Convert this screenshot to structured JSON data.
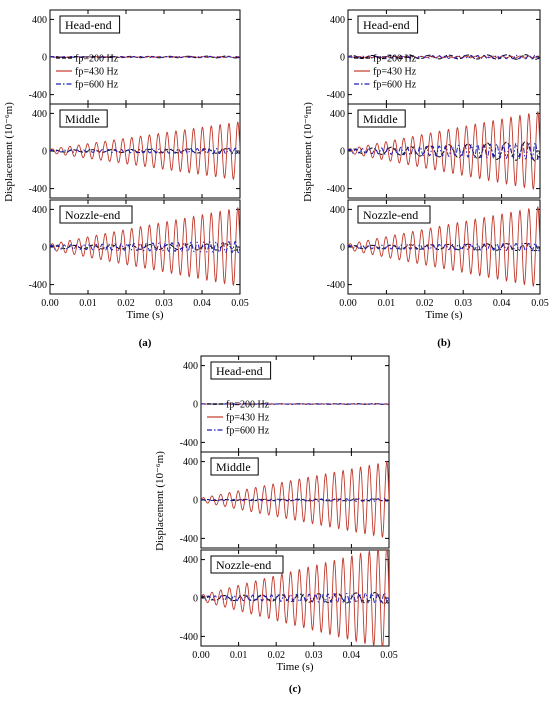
{
  "figure": {
    "panels": [
      {
        "label": "(a)",
        "label_letter": "a"
      },
      {
        "label": "(b)",
        "label_letter": "b"
      },
      {
        "label": "(c)",
        "label_letter": "c"
      }
    ]
  },
  "chart_data": [
    {
      "type": "line",
      "panel": "a",
      "xlabel": "Time (s)",
      "ylabel": "Displacement (10⁻⁶m)",
      "xlim": [
        0,
        0.05
      ],
      "xticks": [
        "0.00",
        "0.01",
        "0.02",
        "0.03",
        "0.04",
        "0.05"
      ],
      "ylim": [
        -500,
        500
      ],
      "yticks": [
        "400",
        "0",
        "-400"
      ],
      "legend": [
        "fp=200 Hz",
        "fp=430 Hz",
        "fp=600 Hz"
      ],
      "legend_location": "lower-left of top subplot",
      "subplots": [
        {
          "name": "Head-end",
          "series": [
            {
              "name": "fp=200 Hz",
              "color": "#000000",
              "style": "dash",
              "frequency_hz": 200,
              "amplitude_start": 5,
              "amplitude_end": 10
            },
            {
              "name": "fp=430 Hz",
              "color": "#c0392b",
              "style": "solid",
              "frequency_hz": 430,
              "amplitude_start": 2,
              "amplitude_end": 5
            },
            {
              "name": "fp=600 Hz",
              "color": "#1f1fb4",
              "style": "dashdot",
              "frequency_hz": 600,
              "amplitude_start": 4,
              "amplitude_end": 8
            }
          ]
        },
        {
          "name": "Middle",
          "series": [
            {
              "name": "fp=200 Hz",
              "color": "#000000",
              "style": "dash",
              "frequency_hz": 200,
              "amplitude_start": 10,
              "amplitude_end": 25
            },
            {
              "name": "fp=430 Hz",
              "color": "#c0392b",
              "style": "solid",
              "frequency_hz": 430,
              "amplitude_start": 20,
              "amplitude_end": 310
            },
            {
              "name": "fp=600 Hz",
              "color": "#1f1fb4",
              "style": "dashdot",
              "frequency_hz": 600,
              "amplitude_start": 10,
              "amplitude_end": 30
            }
          ]
        },
        {
          "name": "Nozzle-end",
          "series": [
            {
              "name": "fp=200 Hz",
              "color": "#000000",
              "style": "dash",
              "frequency_hz": 200,
              "amplitude_start": 15,
              "amplitude_end": 35
            },
            {
              "name": "fp=430 Hz",
              "color": "#c0392b",
              "style": "solid",
              "frequency_hz": 430,
              "amplitude_start": 30,
              "amplitude_end": 420
            },
            {
              "name": "fp=600 Hz",
              "color": "#1f1fb4",
              "style": "dashdot",
              "frequency_hz": 600,
              "amplitude_start": 20,
              "amplitude_end": 60
            }
          ]
        }
      ]
    },
    {
      "type": "line",
      "panel": "b",
      "xlabel": "Time (s)",
      "ylabel": "Displacement (10⁻⁶m)",
      "xlim": [
        0,
        0.05
      ],
      "xticks": [
        "0.00",
        "0.01",
        "0.02",
        "0.03",
        "0.04",
        "0.05"
      ],
      "ylim": [
        -500,
        500
      ],
      "yticks": [
        "400",
        "0",
        "-400"
      ],
      "legend": [
        "fp=200 Hz",
        "fp=430 Hz",
        "fp=600 Hz"
      ],
      "legend_location": "lower-left of top subplot",
      "subplots": [
        {
          "name": "Head-end",
          "series": [
            {
              "name": "fp=200 Hz",
              "color": "#000000",
              "style": "dash",
              "frequency_hz": 200,
              "amplitude_start": 15,
              "amplitude_end": 25
            },
            {
              "name": "fp=430 Hz",
              "color": "#c0392b",
              "style": "solid",
              "frequency_hz": 430,
              "amplitude_start": 5,
              "amplitude_end": 10
            },
            {
              "name": "fp=600 Hz",
              "color": "#1f1fb4",
              "style": "dashdot",
              "frequency_hz": 600,
              "amplitude_start": 10,
              "amplitude_end": 20
            }
          ]
        },
        {
          "name": "Middle",
          "series": [
            {
              "name": "fp=200 Hz",
              "color": "#000000",
              "style": "dash",
              "frequency_hz": 200,
              "amplitude_start": 20,
              "amplitude_end": 110
            },
            {
              "name": "fp=430 Hz",
              "color": "#c0392b",
              "style": "solid",
              "frequency_hz": 430,
              "amplitude_start": 20,
              "amplitude_end": 420
            },
            {
              "name": "fp=600 Hz",
              "color": "#1f1fb4",
              "style": "dashdot",
              "frequency_hz": 600,
              "amplitude_start": 20,
              "amplitude_end": 90
            }
          ]
        },
        {
          "name": "Nozzle-end",
          "series": [
            {
              "name": "fp=200 Hz",
              "color": "#000000",
              "style": "dash",
              "frequency_hz": 200,
              "amplitude_start": 15,
              "amplitude_end": 40
            },
            {
              "name": "fp=430 Hz",
              "color": "#c0392b",
              "style": "solid",
              "frequency_hz": 430,
              "amplitude_start": 30,
              "amplitude_end": 430
            },
            {
              "name": "fp=600 Hz",
              "color": "#1f1fb4",
              "style": "dashdot",
              "frequency_hz": 600,
              "amplitude_start": 15,
              "amplitude_end": 40
            }
          ]
        }
      ]
    },
    {
      "type": "line",
      "panel": "c",
      "xlabel": "Time (s)",
      "ylabel": "Displacement (10⁻⁶m)",
      "xlim": [
        0,
        0.05
      ],
      "xticks": [
        "0.00",
        "0.01",
        "0.02",
        "0.03",
        "0.04",
        "0.05"
      ],
      "ylim": [
        -500,
        500
      ],
      "yticks": [
        "400",
        "0",
        "-400"
      ],
      "legend": [
        "fp=200 Hz",
        "fp=430 Hz",
        "fp=600 Hz"
      ],
      "legend_location": "lower-left of top subplot",
      "subplots": [
        {
          "name": "Head-end",
          "series": [
            {
              "name": "fp=200 Hz",
              "color": "#000000",
              "style": "dash",
              "frequency_hz": 200,
              "amplitude_start": 2,
              "amplitude_end": 4
            },
            {
              "name": "fp=430 Hz",
              "color": "#c0392b",
              "style": "solid",
              "frequency_hz": 430,
              "amplitude_start": 1,
              "amplitude_end": 2
            },
            {
              "name": "fp=600 Hz",
              "color": "#1f1fb4",
              "style": "dashdot",
              "frequency_hz": 600,
              "amplitude_start": 1,
              "amplitude_end": 3
            }
          ]
        },
        {
          "name": "Middle",
          "series": [
            {
              "name": "fp=200 Hz",
              "color": "#000000",
              "style": "dash",
              "frequency_hz": 200,
              "amplitude_start": 5,
              "amplitude_end": 10
            },
            {
              "name": "fp=430 Hz",
              "color": "#c0392b",
              "style": "solid",
              "frequency_hz": 430,
              "amplitude_start": 20,
              "amplitude_end": 400
            },
            {
              "name": "fp=600 Hz",
              "color": "#1f1fb4",
              "style": "dashdot",
              "frequency_hz": 600,
              "amplitude_start": 5,
              "amplitude_end": 15
            }
          ]
        },
        {
          "name": "Nozzle-end",
          "series": [
            {
              "name": "fp=200 Hz",
              "color": "#000000",
              "style": "dash",
              "frequency_hz": 200,
              "amplitude_start": 20,
              "amplitude_end": 60
            },
            {
              "name": "fp=430 Hz",
              "color": "#c0392b",
              "style": "solid",
              "frequency_hz": 430,
              "amplitude_start": 30,
              "amplitude_end": 540
            },
            {
              "name": "fp=600 Hz",
              "color": "#1f1fb4",
              "style": "dashdot",
              "frequency_hz": 600,
              "amplitude_start": 20,
              "amplitude_end": 55
            }
          ]
        }
      ]
    }
  ]
}
